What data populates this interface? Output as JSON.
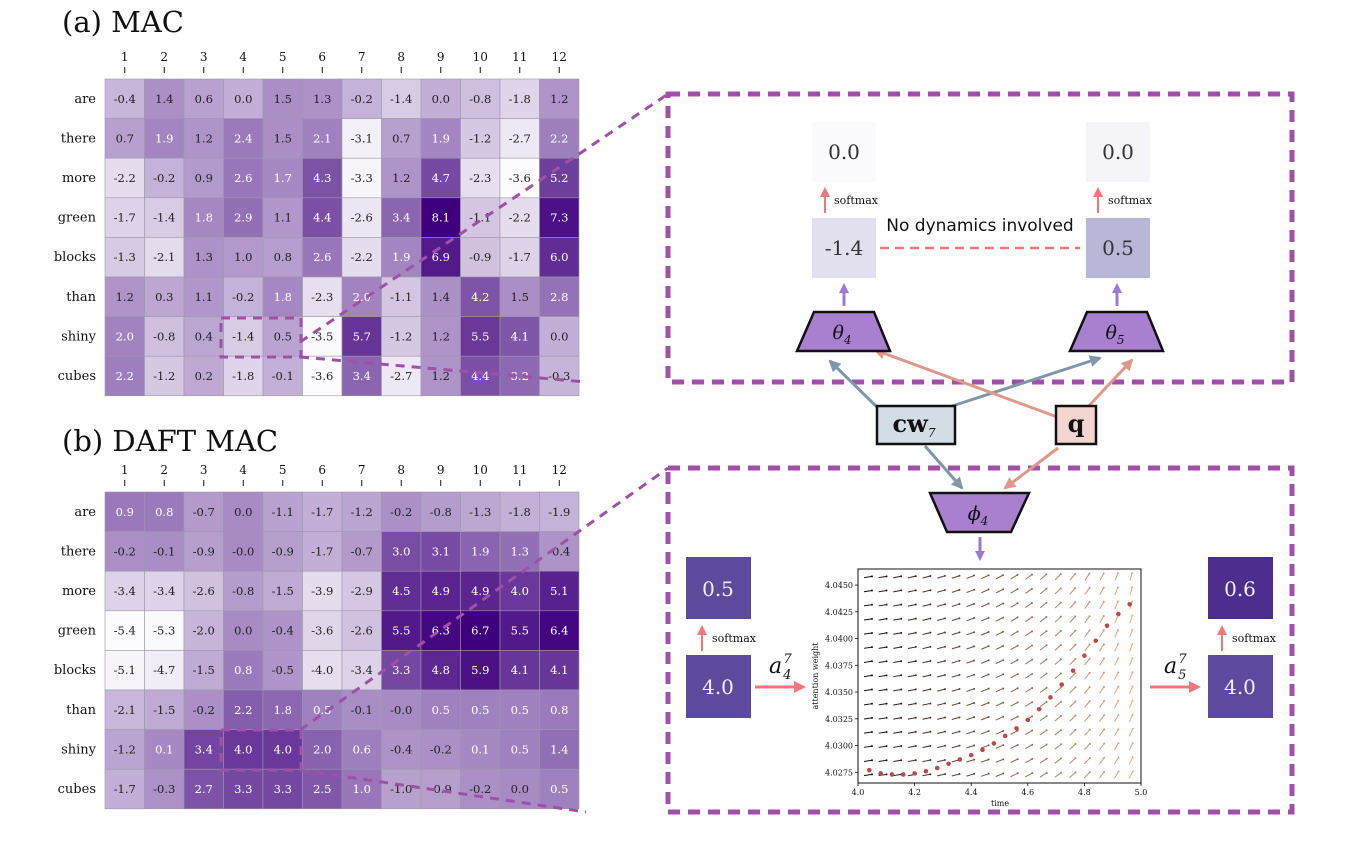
{
  "panel_a": {
    "title": "(a) MAC",
    "columns": [
      "1",
      "2",
      "3",
      "4",
      "5",
      "6",
      "7",
      "8",
      "9",
      "10",
      "11",
      "12"
    ],
    "rows": [
      "are",
      "there",
      "more",
      "green",
      "blocks",
      "than",
      "shiny",
      "cubes"
    ],
    "values": [
      [
        "-0.4",
        "1.4",
        "0.6",
        "0.0",
        "1.5",
        "1.3",
        "-0.2",
        "-1.4",
        "0.0",
        "-0.8",
        "-1.8",
        "1.2"
      ],
      [
        "0.7",
        "1.9",
        "1.2",
        "2.4",
        "1.5",
        "2.1",
        "-3.1",
        "0.7",
        "1.9",
        "-1.2",
        "-2.7",
        "2.2"
      ],
      [
        "-2.2",
        "-0.2",
        "0.9",
        "2.6",
        "1.7",
        "4.3",
        "-3.3",
        "1.2",
        "4.7",
        "-2.3",
        "-3.6",
        "5.2"
      ],
      [
        "-1.7",
        "-1.4",
        "1.8",
        "2.9",
        "1.1",
        "4.4",
        "-2.6",
        "3.4",
        "8.1",
        "-1.1",
        "-2.2",
        "7.3"
      ],
      [
        "-1.3",
        "-2.1",
        "1.3",
        "1.0",
        "0.8",
        "2.6",
        "-2.2",
        "1.9",
        "6.9",
        "-0.9",
        "-1.7",
        "6.0"
      ],
      [
        "1.2",
        "0.3",
        "1.1",
        "-0.2",
        "1.8",
        "-2.3",
        "2.0",
        "-1.1",
        "1.4",
        "4.2",
        "1.5",
        "2.8"
      ],
      [
        "2.0",
        "-0.8",
        "0.4",
        "-1.4",
        "0.5",
        "-3.5",
        "5.7",
        "-1.2",
        "1.2",
        "5.5",
        "4.1",
        "0.0"
      ],
      [
        "2.2",
        "-1.2",
        "0.2",
        "-1.8",
        "-0.1",
        "-3.6",
        "3.4",
        "-2.7",
        "1.2",
        "4.4",
        "3.2",
        "-0.3"
      ]
    ]
  },
  "panel_b": {
    "title": "(b) DAFT MAC",
    "columns": [
      "1",
      "2",
      "3",
      "4",
      "5",
      "6",
      "7",
      "8",
      "9",
      "10",
      "11",
      "12"
    ],
    "rows": [
      "are",
      "there",
      "more",
      "green",
      "blocks",
      "than",
      "shiny",
      "cubes"
    ],
    "values": [
      [
        "0.9",
        "0.8",
        "-0.7",
        "0.0",
        "-1.1",
        "-1.7",
        "-1.2",
        "-0.2",
        "-0.8",
        "-1.3",
        "-1.8",
        "-1.9"
      ],
      [
        "-0.2",
        "-0.1",
        "-0.9",
        "-0.0",
        "-0.9",
        "-1.7",
        "-0.7",
        "3.0",
        "3.1",
        "1.9",
        "1.3",
        "-0.4"
      ],
      [
        "-3.4",
        "-3.4",
        "-2.6",
        "-0.8",
        "-1.5",
        "-3.9",
        "-2.9",
        "4.5",
        "4.9",
        "4.9",
        "4.0",
        "5.1"
      ],
      [
        "-5.4",
        "-5.3",
        "-2.0",
        "0.0",
        "-0.4",
        "-3.6",
        "-2.6",
        "5.5",
        "6.3",
        "6.7",
        "5.5",
        "6.4"
      ],
      [
        "-5.1",
        "-4.7",
        "-1.5",
        "0.8",
        "-0.5",
        "-4.0",
        "-3.4",
        "3.3",
        "4.8",
        "5.9",
        "4.1",
        "4.1"
      ],
      [
        "-2.1",
        "-1.5",
        "-0.2",
        "2.2",
        "1.8",
        "0.5",
        "-0.1",
        "-0.0",
        "0.5",
        "0.5",
        "0.5",
        "0.8"
      ],
      [
        "-1.2",
        "0.1",
        "3.4",
        "4.0",
        "4.0",
        "2.0",
        "0.6",
        "-0.4",
        "-0.2",
        "0.1",
        "0.5",
        "1.4"
      ],
      [
        "-1.7",
        "-0.3",
        "2.7",
        "3.3",
        "3.3",
        "2.5",
        "1.0",
        "-1.0",
        "-0.9",
        "-0.2",
        "0.0",
        "0.5"
      ]
    ]
  },
  "zoom_a": {
    "left_top": "0.0",
    "left_bottom": "-1.4",
    "right_top": "0.0",
    "right_bottom": "0.5",
    "softmax_left": "softmax",
    "softmax_right": "softmax",
    "note": "No dynamics involved"
  },
  "zoom_b": {
    "left_top": "0.5",
    "left_bottom": "4.0",
    "right_top": "0.6",
    "right_bottom": "4.0",
    "softmax_left": "softmax",
    "softmax_right": "softmax",
    "a_left": "a",
    "a_left_sub": "4",
    "a_left_sup": "7",
    "a_right": "a",
    "a_right_sub": "5",
    "a_right_sup": "7"
  },
  "modules": {
    "theta4": "θ",
    "theta4_sub": "4",
    "theta5": "θ",
    "theta5_sub": "5",
    "phi4": "ϕ",
    "phi4_sub": "4",
    "cw": "cw",
    "cw_sub": "7",
    "q": "q"
  },
  "flow_plot": {
    "xlabel": "time",
    "ylabel": "attention weight",
    "xticks": [
      "4.0",
      "4.2",
      "4.4",
      "4.6",
      "4.8",
      "5.0"
    ],
    "yticks": [
      "4.0275",
      "4.0300",
      "4.0325",
      "4.0350",
      "4.0375",
      "4.0400",
      "4.0425",
      "4.0450"
    ]
  },
  "chart_data": {
    "type": "scatter",
    "xlabel": "time",
    "ylabel": "attention weight",
    "xlim": [
      4.0,
      5.0
    ],
    "ylim": [
      4.0265,
      4.0465
    ],
    "x": [
      4.04,
      4.08,
      4.12,
      4.16,
      4.2,
      4.24,
      4.28,
      4.32,
      4.36,
      4.4,
      4.44,
      4.48,
      4.52,
      4.56,
      4.6,
      4.64,
      4.68,
      4.72,
      4.76,
      4.8,
      4.84,
      4.88,
      4.92,
      4.96
    ],
    "y": [
      4.0277,
      4.0274,
      4.0273,
      4.0273,
      4.0274,
      4.0276,
      4.0279,
      4.0283,
      4.0287,
      4.0291,
      4.0296,
      4.0302,
      4.0309,
      4.0316,
      4.0324,
      4.0334,
      4.0345,
      4.0357,
      4.037,
      4.0384,
      4.0398,
      4.0412,
      4.0423,
      4.0432
    ]
  },
  "colors": {
    "purple_dark": "#3f007d",
    "purple_light": "#fcfbfd",
    "zoom_border": "#a050a8",
    "module_fill": "#a97fd0",
    "arrow_purple": "#9b79d0",
    "arrow_blue": "#7e97ab",
    "arrow_salmon": "#e0988a",
    "arrow_red": "#f07878",
    "cw_fill": "#d3dde4",
    "q_fill": "#f3d5cf"
  }
}
